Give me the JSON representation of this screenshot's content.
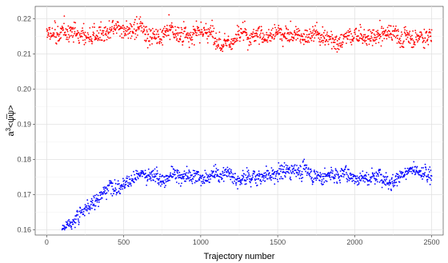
{
  "chart_data": {
    "type": "scatter",
    "title": "",
    "xlabel": "Trajectory number",
    "ylabel_base": "a",
    "ylabel_sup": "3",
    "ylabel_rest": "<ψ̅ψ>",
    "xlim": [
      -75,
      2575
    ],
    "ylim": [
      0.1585,
      0.2235
    ],
    "x_ticks": [
      0,
      500,
      1000,
      1500,
      2000,
      2500
    ],
    "x_tick_labels": [
      "0",
      "500",
      "1000",
      "1500",
      "2000",
      "2500"
    ],
    "y_ticks": [
      0.16,
      0.17,
      0.18,
      0.19,
      0.2,
      0.21,
      0.22
    ],
    "y_tick_labels": [
      "0.16",
      "0.17",
      "0.18",
      "0.19",
      "0.20",
      "0.21",
      "0.22"
    ],
    "grid": true,
    "legend": "none",
    "series": [
      {
        "color": "#ff0000",
        "x_range": [
          0,
          2500
        ],
        "y_mean": 0.2155,
        "y_min": 0.2098,
        "y_max": 0.2225
      },
      {
        "color": "#0000ff",
        "x_range": [
          100,
          2500
        ],
        "trend": [
          {
            "x": 100,
            "y": 0.1603
          },
          {
            "x": 150,
            "y": 0.1618
          },
          {
            "x": 200,
            "y": 0.1648
          },
          {
            "x": 300,
            "y": 0.168
          },
          {
            "x": 400,
            "y": 0.1725
          },
          {
            "x": 500,
            "y": 0.1757
          },
          {
            "x": 700,
            "y": 0.1756
          },
          {
            "x": 1000,
            "y": 0.1753
          },
          {
            "x": 1300,
            "y": 0.1758
          },
          {
            "x": 1500,
            "y": 0.1763
          },
          {
            "x": 1650,
            "y": 0.1773
          },
          {
            "x": 1750,
            "y": 0.1762
          },
          {
            "x": 2000,
            "y": 0.1752
          },
          {
            "x": 2300,
            "y": 0.1762
          },
          {
            "x": 2500,
            "y": 0.1757
          }
        ],
        "y_min": 0.16,
        "y_max": 0.1828
      }
    ]
  }
}
